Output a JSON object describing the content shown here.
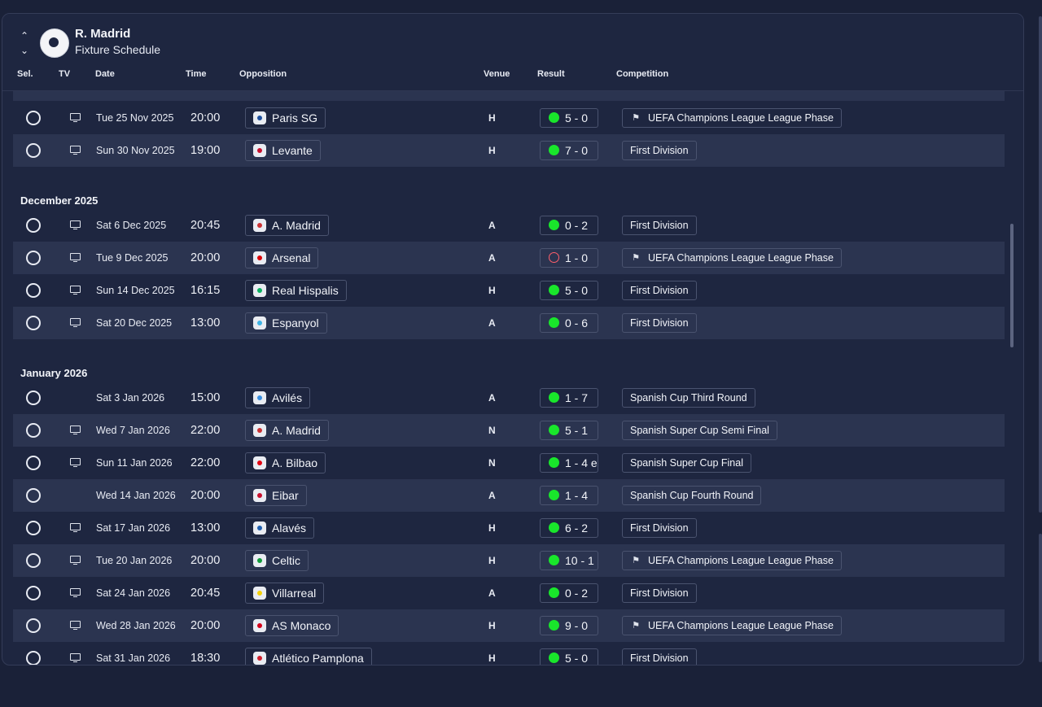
{
  "header": {
    "club_name": "R. Madrid",
    "screen_title": "Fixture Schedule"
  },
  "columns": {
    "sel": "Sel.",
    "tv": "TV",
    "date": "Date",
    "time": "Time",
    "opposition": "Opposition",
    "venue": "Venue",
    "result": "Result",
    "competition": "Competition"
  },
  "sections": {
    "december": "December 2025",
    "january": "January 2026"
  },
  "fixtures": [
    {
      "date": "Tue 25 Nov 2025",
      "time": "20:00",
      "opp": "Paris SG",
      "venue": "H",
      "result": "5 - 0",
      "outcome": "win",
      "comp": "UEFA Champions League League Phase",
      "uefa": true,
      "tv": true,
      "badge": "#1d4f9e"
    },
    {
      "date": "Sun 30 Nov 2025",
      "time": "19:00",
      "opp": "Levante",
      "venue": "H",
      "result": "7 - 0",
      "outcome": "win",
      "comp": "First Division",
      "uefa": false,
      "tv": true,
      "badge": "#c8102e"
    },
    {
      "date": "Sat 6 Dec 2025",
      "time": "20:45",
      "opp": "A. Madrid",
      "venue": "A",
      "result": "0 - 2",
      "outcome": "win",
      "comp": "First Division",
      "uefa": false,
      "tv": true,
      "badge": "#cb3234"
    },
    {
      "date": "Tue 9 Dec 2025",
      "time": "20:00",
      "opp": "Arsenal",
      "venue": "A",
      "result": "1 - 0",
      "outcome": "loss",
      "comp": "UEFA Champions League League Phase",
      "uefa": true,
      "tv": true,
      "badge": "#db0007"
    },
    {
      "date": "Sun 14 Dec 2025",
      "time": "16:15",
      "opp": "Real Hispalis",
      "venue": "H",
      "result": "5 - 0",
      "outcome": "win",
      "comp": "First Division",
      "uefa": false,
      "tv": true,
      "badge": "#0bb363"
    },
    {
      "date": "Sat 20 Dec 2025",
      "time": "13:00",
      "opp": "Espanyol",
      "venue": "A",
      "result": "0 - 6",
      "outcome": "win",
      "comp": "First Division",
      "uefa": false,
      "tv": true,
      "badge": "#3fb4e5"
    },
    {
      "date": "Sat 3 Jan 2026",
      "time": "15:00",
      "opp": "Avilés",
      "venue": "A",
      "result": "1 - 7",
      "outcome": "win",
      "comp": "Spanish Cup Third Round",
      "uefa": false,
      "tv": false,
      "badge": "#3a8fe0"
    },
    {
      "date": "Wed 7 Jan 2026",
      "time": "22:00",
      "opp": "A. Madrid",
      "venue": "N",
      "result": "5 - 1",
      "outcome": "win",
      "comp": "Spanish Super Cup Semi Final",
      "uefa": false,
      "tv": true,
      "badge": "#cb3234"
    },
    {
      "date": "Sun 11 Jan 2026",
      "time": "22:00",
      "opp": "A. Bilbao",
      "venue": "N",
      "result": "1 - 4 e",
      "outcome": "win",
      "comp": "Spanish Super Cup Final",
      "uefa": false,
      "tv": true,
      "badge": "#e30613"
    },
    {
      "date": "Wed 14 Jan 2026",
      "time": "20:00",
      "opp": "Eibar",
      "venue": "A",
      "result": "1 - 4",
      "outcome": "win",
      "comp": "Spanish Cup Fourth Round",
      "uefa": false,
      "tv": false,
      "badge": "#c8102e"
    },
    {
      "date": "Sat 17 Jan 2026",
      "time": "13:00",
      "opp": "Alavés",
      "venue": "H",
      "result": "6 - 2",
      "outcome": "win",
      "comp": "First Division",
      "uefa": false,
      "tv": true,
      "badge": "#1f5fb0"
    },
    {
      "date": "Tue 20 Jan 2026",
      "time": "20:00",
      "opp": "Celtic",
      "venue": "H",
      "result": "10 - 1",
      "outcome": "win",
      "comp": "UEFA Champions League League Phase",
      "uefa": true,
      "tv": true,
      "badge": "#119c3b"
    },
    {
      "date": "Sat 24 Jan 2026",
      "time": "20:45",
      "opp": "Villarreal",
      "venue": "A",
      "result": "0 - 2",
      "outcome": "win",
      "comp": "First Division",
      "uefa": false,
      "tv": true,
      "badge": "#f5d20a"
    },
    {
      "date": "Wed 28 Jan 2026",
      "time": "20:00",
      "opp": "AS Monaco",
      "venue": "H",
      "result": "9 - 0",
      "outcome": "win",
      "comp": "UEFA Champions League League Phase",
      "uefa": true,
      "tv": true,
      "badge": "#d4001a"
    },
    {
      "date": "Sat 31 Jan 2026",
      "time": "18:30",
      "opp": "Atlético Pamplona",
      "venue": "H",
      "result": "5 - 0",
      "outcome": "win",
      "comp": "First Division",
      "uefa": false,
      "tv": true,
      "badge": "#d01f2e"
    }
  ]
}
